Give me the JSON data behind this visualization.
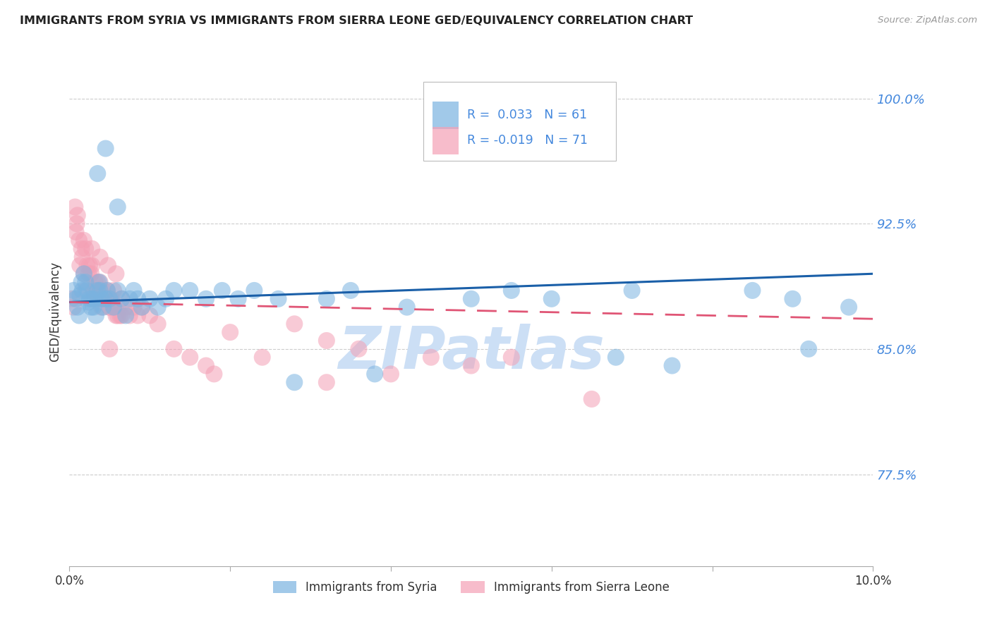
{
  "title": "IMMIGRANTS FROM SYRIA VS IMMIGRANTS FROM SIERRA LEONE GED/EQUIVALENCY CORRELATION CHART",
  "source": "Source: ZipAtlas.com",
  "ylabel": "GED/Equivalency",
  "xmin": 0.0,
  "xmax": 10.0,
  "ymin": 72.0,
  "ymax": 102.5,
  "yticks": [
    77.5,
    85.0,
    92.5,
    100.0
  ],
  "ytick_labels": [
    "77.5%",
    "85.0%",
    "92.5%",
    "100.0%"
  ],
  "xticks": [
    0.0,
    2.0,
    4.0,
    6.0,
    8.0,
    10.0
  ],
  "xtick_labels": [
    "0.0%",
    "",
    "",
    "",
    "",
    "10.0%"
  ],
  "syria_R": 0.033,
  "syria_N": 61,
  "sierraleone_R": -0.019,
  "sierraleone_N": 71,
  "syria_color": "#7ab3e0",
  "sierraleone_color": "#f4a0b5",
  "syria_line_color": "#1a5fa8",
  "sierraleone_line_color": "#e05575",
  "watermark": "ZIPatlas",
  "watermark_color": "#ccdff5",
  "background_color": "#ffffff",
  "grid_color": "#cccccc",
  "title_color": "#222222",
  "right_axis_color": "#4488dd",
  "legend_text_color": "#4488dd",
  "syria_x": [
    0.05,
    0.08,
    0.1,
    0.12,
    0.13,
    0.15,
    0.16,
    0.18,
    0.2,
    0.22,
    0.24,
    0.25,
    0.27,
    0.28,
    0.3,
    0.32,
    0.33,
    0.35,
    0.37,
    0.38,
    0.4,
    0.42,
    0.45,
    0.47,
    0.5,
    0.55,
    0.6,
    0.65,
    0.7,
    0.75,
    0.8,
    0.85,
    0.9,
    1.0,
    1.1,
    1.2,
    1.3,
    1.5,
    1.7,
    1.9,
    2.1,
    2.3,
    2.6,
    2.8,
    3.2,
    3.5,
    3.8,
    4.2,
    5.0,
    5.5,
    6.0,
    6.8,
    7.0,
    7.5,
    8.5,
    9.0,
    9.2,
    9.7,
    0.35,
    0.45,
    0.6
  ],
  "syria_y": [
    88.5,
    88.0,
    87.5,
    87.0,
    88.2,
    89.0,
    88.5,
    89.5,
    89.0,
    88.5,
    87.8,
    88.0,
    87.5,
    88.0,
    87.5,
    88.0,
    87.0,
    88.5,
    89.0,
    88.5,
    88.0,
    87.5,
    88.0,
    88.5,
    88.0,
    87.5,
    88.5,
    88.0,
    87.0,
    88.0,
    88.5,
    88.0,
    87.5,
    88.0,
    87.5,
    88.0,
    88.5,
    88.5,
    88.0,
    88.5,
    88.0,
    88.5,
    88.0,
    83.0,
    88.0,
    88.5,
    83.5,
    87.5,
    88.0,
    88.5,
    88.0,
    84.5,
    88.5,
    84.0,
    88.5,
    88.0,
    85.0,
    87.5,
    95.5,
    97.0,
    93.5
  ],
  "sierraleone_x": [
    0.03,
    0.05,
    0.07,
    0.08,
    0.09,
    0.1,
    0.12,
    0.13,
    0.15,
    0.16,
    0.18,
    0.2,
    0.22,
    0.24,
    0.25,
    0.27,
    0.28,
    0.3,
    0.32,
    0.33,
    0.35,
    0.37,
    0.38,
    0.4,
    0.42,
    0.45,
    0.47,
    0.5,
    0.52,
    0.55,
    0.58,
    0.6,
    0.63,
    0.65,
    0.7,
    0.75,
    0.8,
    0.85,
    0.9,
    1.0,
    1.1,
    1.3,
    1.5,
    1.7,
    2.0,
    2.4,
    2.8,
    3.2,
    3.6,
    4.0,
    4.5,
    5.0,
    5.5,
    6.5,
    0.2,
    0.3,
    0.35,
    0.4,
    0.45,
    0.5,
    0.55,
    0.6,
    0.65,
    0.18,
    0.28,
    0.38,
    0.48,
    0.58,
    0.5,
    1.8,
    3.2
  ],
  "sierraleone_y": [
    88.0,
    87.5,
    93.5,
    92.0,
    92.5,
    93.0,
    91.5,
    90.0,
    91.0,
    90.5,
    89.5,
    91.0,
    90.0,
    89.5,
    90.0,
    89.5,
    90.0,
    88.5,
    89.0,
    88.5,
    89.0,
    88.5,
    89.0,
    88.0,
    88.5,
    88.0,
    88.5,
    87.5,
    88.0,
    88.5,
    87.0,
    87.5,
    87.0,
    88.0,
    87.5,
    87.0,
    87.5,
    87.0,
    87.5,
    87.0,
    86.5,
    85.0,
    84.5,
    84.0,
    86.0,
    84.5,
    86.5,
    85.5,
    85.0,
    83.5,
    84.5,
    84.0,
    84.5,
    82.0,
    88.5,
    88.0,
    88.0,
    87.5,
    88.0,
    87.5,
    87.5,
    87.0,
    87.0,
    91.5,
    91.0,
    90.5,
    90.0,
    89.5,
    85.0,
    83.5,
    83.0
  ],
  "syria_trendline_x0": 0.0,
  "syria_trendline_x1": 10.0,
  "syria_trendline_y0": 87.8,
  "syria_trendline_y1": 89.5,
  "sl_trendline_x0": 0.0,
  "sl_trendline_x1": 10.0,
  "sl_trendline_y0": 87.8,
  "sl_trendline_y1": 86.8
}
